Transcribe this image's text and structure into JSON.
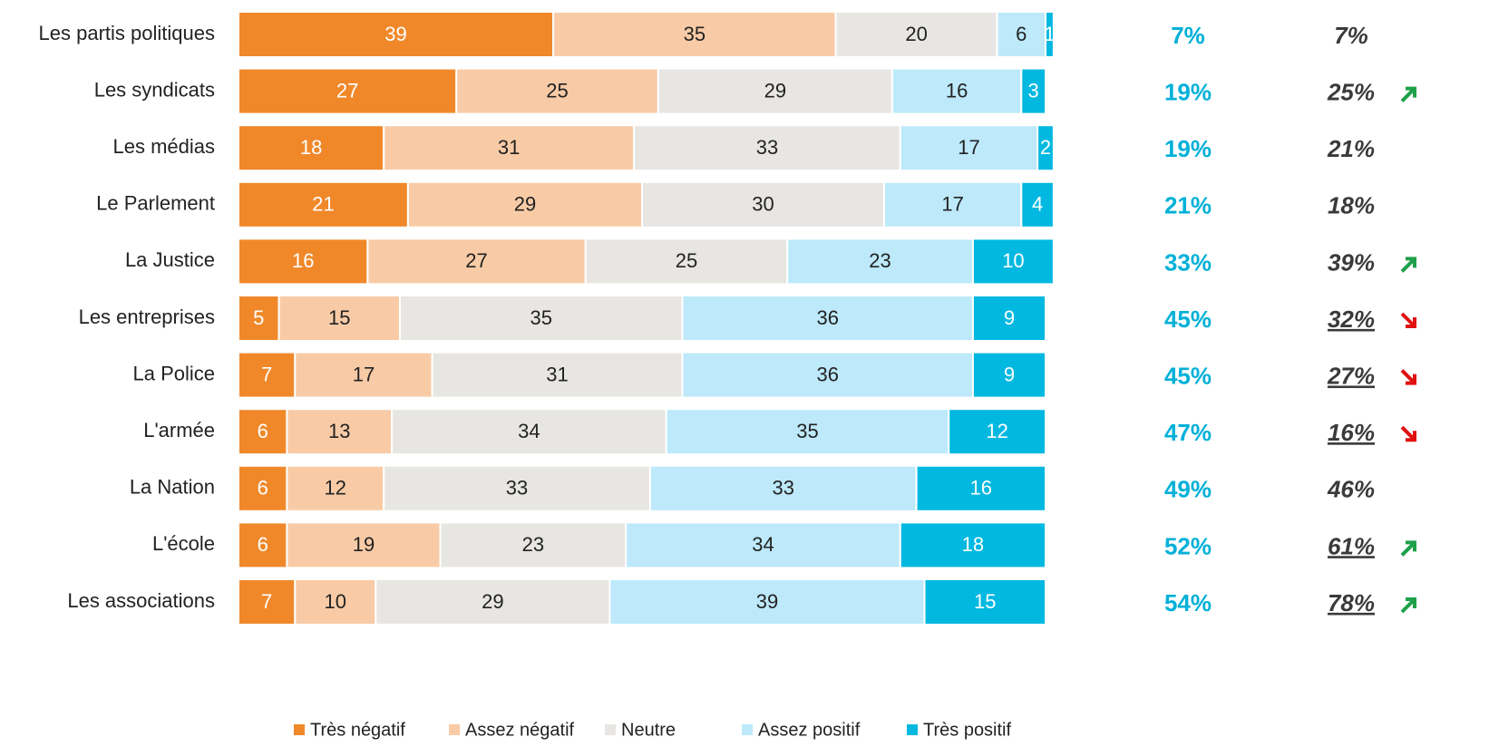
{
  "chart_data": {
    "type": "stacked_bar_horizontal",
    "categories": [
      "Les partis politiques",
      "Les syndicats",
      "Les médias",
      "Le Parlement",
      "La Justice",
      "Les entreprises",
      "La Police",
      "L'armée",
      "La Nation",
      "L'école",
      "Les associations"
    ],
    "xlim": [
      0,
      100
    ],
    "series": [
      {
        "name": "Très négatif",
        "color": "#f0882a",
        "values": [
          39,
          27,
          18,
          21,
          16,
          5,
          7,
          6,
          6,
          6,
          7
        ]
      },
      {
        "name": "Assez négatif",
        "color": "#f8cba6",
        "values": [
          35,
          25,
          31,
          29,
          27,
          15,
          17,
          13,
          12,
          19,
          10
        ]
      },
      {
        "name": "Neutre",
        "color": "#e8e6e3",
        "values": [
          20,
          29,
          33,
          30,
          25,
          35,
          31,
          34,
          33,
          23,
          29
        ]
      },
      {
        "name": "Assez positif",
        "color": "#bde9fb",
        "values": [
          6,
          16,
          17,
          17,
          23,
          36,
          36,
          35,
          33,
          34,
          39
        ]
      },
      {
        "name": "Très positif",
        "color": "#00b8e0",
        "values": [
          1,
          3,
          2,
          4,
          10,
          9,
          9,
          12,
          16,
          18,
          15
        ]
      }
    ],
    "side_columns": [
      {
        "color": "#00b0d8",
        "values": [
          7,
          19,
          19,
          21,
          33,
          45,
          45,
          47,
          49,
          52,
          54
        ],
        "value_labels": [
          "7%",
          "19%",
          "19%",
          "21%",
          "33%",
          "45%",
          "45%",
          "47%",
          "49%",
          "52%",
          "54%"
        ]
      },
      {
        "color": "#3a3a3a",
        "values": [
          7,
          25,
          21,
          18,
          39,
          32,
          27,
          16,
          46,
          61,
          78
        ],
        "value_labels": [
          "7%",
          "25%",
          "21%",
          "18%",
          "39%",
          "32%",
          "27%",
          "16%",
          "46%",
          "61%",
          "78%"
        ],
        "underlined": [
          false,
          false,
          false,
          false,
          false,
          true,
          true,
          true,
          false,
          true,
          true
        ],
        "trend": [
          null,
          "up",
          null,
          null,
          "up",
          "down",
          "down",
          "down",
          null,
          "up",
          "up"
        ]
      }
    ],
    "trend_colors": {
      "up": "#1ea04a",
      "down": "#e01010"
    },
    "legend": "bottom"
  }
}
